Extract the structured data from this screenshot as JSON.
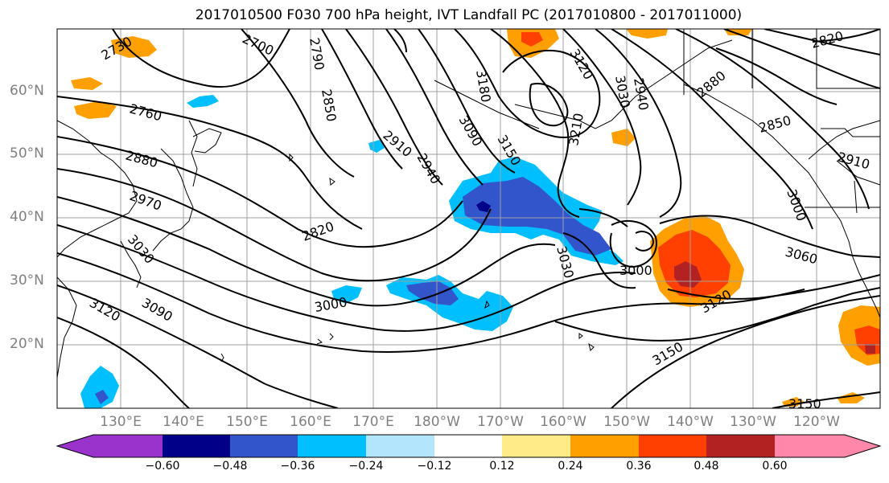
{
  "title": "2017010500 F030 700 hPa height, IVT Landfall PC (2017010800 - 2017011000)",
  "lat_labels": [
    "60°N",
    "50°N",
    "40°N",
    "30°N",
    "20°N"
  ],
  "lon_labels": [
    "130°E",
    "140°E",
    "150°E",
    "160°E",
    "170°E",
    "180°W",
    "170°W",
    "160°W",
    "150°W",
    "140°W",
    "130°W",
    "120°W"
  ],
  "contour_labels": [
    "2730",
    "2700",
    "2790",
    "2760",
    "2880",
    "2970",
    "3030",
    "3120",
    "3090",
    "2850",
    "2910",
    "2940",
    "2820",
    "3000",
    "3180",
    "3090",
    "3150",
    "3120",
    "3210",
    "3030",
    "3030",
    "2940",
    "2880",
    "2820",
    "2850",
    "2910",
    "3000",
    "3060",
    "3120",
    "3150",
    "3150",
    "3000"
  ],
  "colorbar": {
    "ticks": [
      "−0.60",
      "−0.48",
      "−0.36",
      "−0.24",
      "−0.12",
      "0.12",
      "0.24",
      "0.36",
      "0.48",
      "0.60"
    ],
    "colors": [
      "#9933cc",
      "#000088",
      "#3355cc",
      "#00bfff",
      "#b3e5fc",
      "#ffffff",
      "#ffeb88",
      "#ffa000",
      "#ff4000",
      "#b22222",
      "#ff88aa"
    ]
  }
}
